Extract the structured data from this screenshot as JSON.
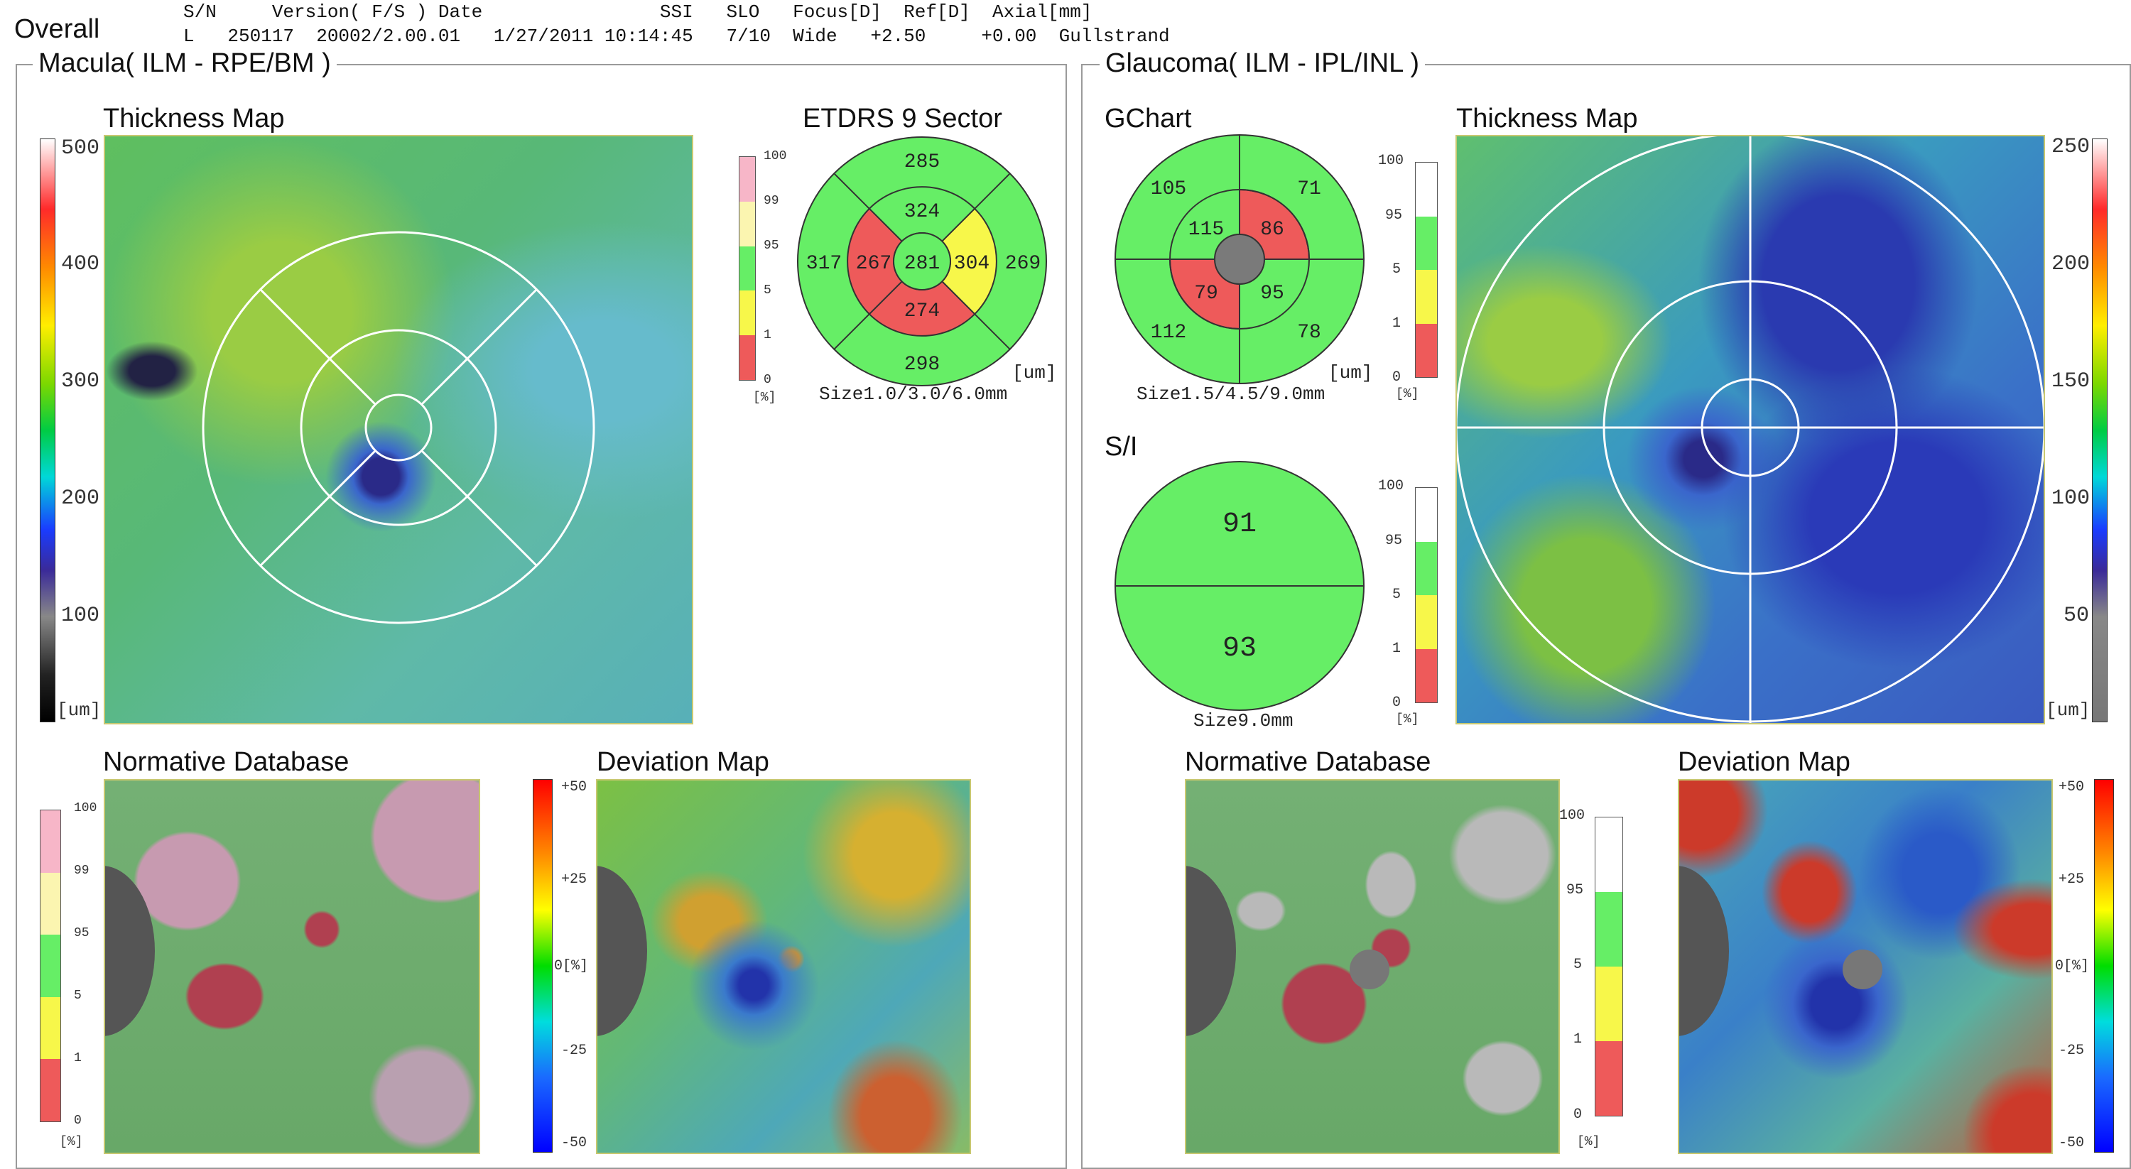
{
  "report": {
    "title": "Overall"
  },
  "header": {
    "row1": "S/N     Version( F/S ) Date                SSI   SLO   Focus[D]  Ref[D]  Axial[mm]",
    "row2": "L   250117  20002/2.00.01   1/27/2011 10:14:45   7/10  Wide   +2.50     +0.00  Gullstrand"
  },
  "macula": {
    "title": "Macula( ILM - RPE/BM )",
    "thickness_map": {
      "title": "Thickness Map",
      "scale": [
        "500",
        "400",
        "300",
        "200",
        "100"
      ],
      "unit": "[um]"
    },
    "etdrs": {
      "title": "ETDRS 9 Sector",
      "values": {
        "outer_superior": "285",
        "outer_nasal": "269",
        "outer_inferior": "298",
        "outer_temporal": "317",
        "inner_superior": "324",
        "inner_nasal": "304",
        "inner_inferior": "274",
        "inner_temporal": "267",
        "center": "281"
      },
      "unit": "[um]",
      "size": "Size1.0/3.0/6.0mm",
      "legend": [
        "100",
        "99",
        "95",
        "5",
        "1",
        "0"
      ],
      "legend_unit": "[%]"
    },
    "normative": {
      "title": "Normative Database",
      "legend": [
        "100",
        "99",
        "95",
        "5",
        "1",
        "0"
      ],
      "legend_unit": "[%]"
    },
    "deviation": {
      "title": "Deviation Map",
      "scale": [
        "+50",
        "+25",
        "0[%]",
        "-25",
        "-50"
      ]
    }
  },
  "glaucoma": {
    "title": "Glaucoma( ILM - IPL/INL )",
    "gchart": {
      "title": "GChart",
      "values": {
        "outer_st": "105",
        "outer_sn": "71",
        "outer_it": "112",
        "outer_in": "78",
        "inner_st": "115",
        "inner_sn": "86",
        "inner_it": "79",
        "inner_in": "95"
      },
      "unit": "[um]",
      "size": "Size1.5/4.5/9.0mm",
      "legend": [
        "100",
        "95",
        "5",
        "1",
        "0"
      ],
      "legend_unit": "[%]"
    },
    "si": {
      "title": "S/I",
      "superior": "91",
      "inferior": "93",
      "size": "Size9.0mm",
      "legend": [
        "100",
        "95",
        "5",
        "1",
        "0"
      ],
      "legend_unit": "[%]"
    },
    "thickness_map": {
      "title": "Thickness Map",
      "scale": [
        "250",
        "200",
        "150",
        "100",
        "50"
      ],
      "unit": "[um]"
    },
    "normative": {
      "title": "Normative Database",
      "legend": [
        "100",
        "95",
        "5",
        "1",
        "0"
      ],
      "legend_unit": "[%]"
    },
    "deviation": {
      "title": "Deviation Map",
      "scale": [
        "+50",
        "+25",
        "0[%]",
        "-25",
        "-50"
      ]
    }
  },
  "colors": {
    "green": "#66ee66",
    "red": "#ee5a5a",
    "yellow": "#f7f74a",
    "pink": "#f7b6c8",
    "lightyellow": "#fbf5b0"
  }
}
